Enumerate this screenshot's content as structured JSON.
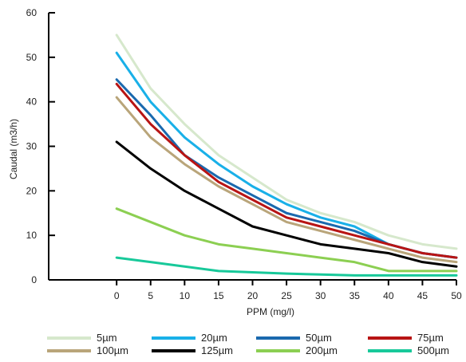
{
  "chart_data": {
    "type": "line",
    "title": "",
    "xlabel": "PPM (mg/l)",
    "ylabel": "Caudal (m3/h)",
    "xlim": [
      -10,
      50
    ],
    "ylim": [
      0,
      60
    ],
    "grid": false,
    "legend_position": "bottom",
    "x": [
      0,
      5,
      10,
      15,
      20,
      25,
      30,
      35,
      40,
      45,
      50
    ],
    "x_ticks": [
      "0",
      "5",
      "10",
      "15",
      "20",
      "25",
      "30",
      "35",
      "40",
      "45",
      "50"
    ],
    "y_ticks": [
      "0",
      "10",
      "20",
      "30",
      "40",
      "50",
      "60"
    ],
    "series": [
      {
        "name": "5µm",
        "color": "#d6e8cc",
        "values": [
          55,
          43,
          35,
          28,
          23,
          18,
          15,
          13,
          10,
          8,
          7
        ]
      },
      {
        "name": "20µm",
        "color": "#19b0e8",
        "values": [
          51,
          40,
          32,
          26,
          21,
          17,
          14,
          12,
          8,
          6,
          5
        ]
      },
      {
        "name": "50µm",
        "color": "#1a69ae",
        "values": [
          45,
          37,
          28,
          23,
          19,
          15,
          13,
          11,
          8,
          6,
          5
        ]
      },
      {
        "name": "75µm",
        "color": "#b81414",
        "values": [
          44,
          35,
          28,
          22,
          18,
          14,
          12,
          10,
          8,
          6,
          5
        ]
      },
      {
        "name": "100µm",
        "color": "#b9a57a",
        "values": [
          41,
          32,
          26,
          21,
          17,
          13,
          11,
          9,
          7,
          5,
          4
        ]
      },
      {
        "name": "125µm",
        "color": "#000000",
        "values": [
          31,
          25,
          20,
          16,
          12,
          10,
          8,
          7,
          6,
          4,
          3
        ]
      },
      {
        "name": "200µm",
        "color": "#8ccf52",
        "values": [
          16,
          13,
          10,
          8,
          7,
          6,
          5,
          4,
          2,
          2,
          2
        ]
      },
      {
        "name": "500µm",
        "color": "#18c99a",
        "values": [
          5,
          4,
          3,
          2,
          1.7,
          1.4,
          1.2,
          1,
          1,
          1,
          1
        ]
      }
    ]
  }
}
